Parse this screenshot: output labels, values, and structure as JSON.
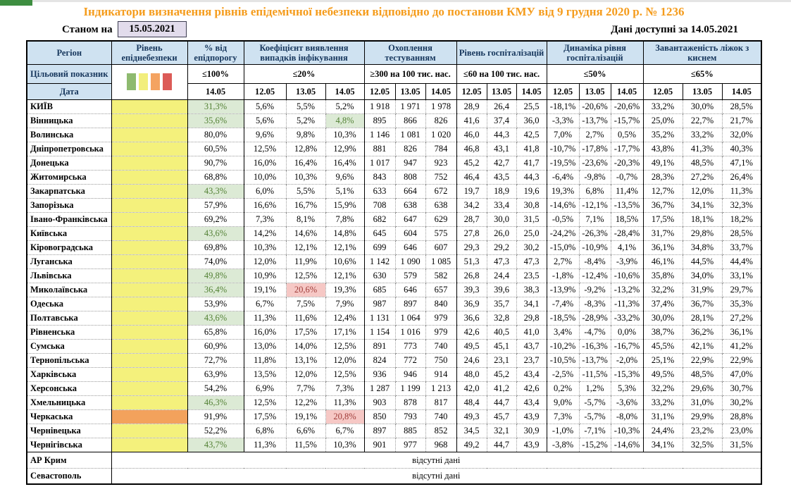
{
  "title": "Індикатори визначення рівнів епідемічної небезпеки відповідно до постанови КМУ від 9 грудня 2020 р. № 1236",
  "meta": {
    "as_of_label": "Станом на",
    "as_of_date": "15.05.2021",
    "available_label": "Дані доступні за",
    "available_date": "14.05.2021"
  },
  "header": {
    "region_label": "Регіон",
    "level_label": "Рівень епіднебезпеки",
    "target_row_label": "Цільовий показник",
    "date_row_label": "Дата",
    "legend_colors": [
      "#8eba6f",
      "#f2ee7c",
      "#f4a361",
      "#dc5b57"
    ],
    "groups": [
      {
        "label": "% від епідпорогу",
        "target": "≤100%",
        "dates": [
          "14.05"
        ]
      },
      {
        "label": "Коефіцієнт виявлення випадків інфікування",
        "target": "≤20%",
        "dates": [
          "12.05",
          "13.05",
          "14.05"
        ]
      },
      {
        "label": "Охоплення тестуванням",
        "target": "≥300 на 100 тис. нас.",
        "dates": [
          "12.05",
          "13.05",
          "14.05"
        ]
      },
      {
        "label": "Рівень госпіталізацій",
        "target": "≤60 на 100 тис. нас.",
        "dates": [
          "12.05",
          "13.05",
          "14.05"
        ]
      },
      {
        "label": "Динаміка рівня госпіталізацій",
        "target": "≤50%",
        "dates": [
          "12.05",
          "13.05",
          "14.05"
        ]
      },
      {
        "label": "Завантаженість ліжок з киснем",
        "target": "≤65%",
        "dates": [
          "12.05",
          "13.05",
          "14.05"
        ]
      }
    ]
  },
  "level_colors": {
    "yellow": "#f4f17c",
    "orange": "#f3a25c"
  },
  "rows": [
    {
      "region": "КИЇВ",
      "level": "yellow",
      "green": [
        0
      ],
      "red": [],
      "cells": [
        "31,3%",
        "5,6%",
        "5,5%",
        "5,2%",
        "1 918",
        "1 971",
        "1 978",
        "28,9",
        "26,4",
        "25,5",
        "-18,1%",
        "-20,6%",
        "-20,6%",
        "33,2%",
        "30,0%",
        "28,5%"
      ]
    },
    {
      "region": "Вінницька",
      "level": "yellow",
      "green": [
        0,
        3
      ],
      "red": [],
      "cells": [
        "35,6%",
        "5,6%",
        "5,2%",
        "4,8%",
        "895",
        "866",
        "826",
        "41,6",
        "37,4",
        "36,0",
        "-3,3%",
        "-13,7%",
        "-15,7%",
        "25,0%",
        "22,7%",
        "21,7%"
      ]
    },
    {
      "region": "Волинська",
      "level": "yellow",
      "green": [],
      "red": [],
      "cells": [
        "80,0%",
        "9,6%",
        "9,8%",
        "10,3%",
        "1 146",
        "1 081",
        "1 020",
        "46,0",
        "44,3",
        "42,5",
        "7,0%",
        "2,7%",
        "0,5%",
        "35,2%",
        "33,2%",
        "32,0%"
      ]
    },
    {
      "region": "Дніпропетровська",
      "level": "yellow",
      "green": [],
      "red": [],
      "cells": [
        "60,5%",
        "12,5%",
        "12,8%",
        "12,9%",
        "881",
        "826",
        "784",
        "46,8",
        "43,1",
        "41,8",
        "-10,7%",
        "-17,8%",
        "-17,7%",
        "43,8%",
        "41,3%",
        "40,3%"
      ]
    },
    {
      "region": "Донецька",
      "level": "yellow",
      "green": [],
      "red": [],
      "cells": [
        "90,7%",
        "16,0%",
        "16,4%",
        "16,4%",
        "1 017",
        "947",
        "923",
        "45,2",
        "42,7",
        "41,7",
        "-19,5%",
        "-23,6%",
        "-20,3%",
        "49,1%",
        "48,5%",
        "47,1%"
      ]
    },
    {
      "region": "Житомирська",
      "level": "yellow",
      "green": [],
      "red": [],
      "cells": [
        "68,8%",
        "10,0%",
        "10,3%",
        "9,6%",
        "843",
        "808",
        "752",
        "46,4",
        "43,5",
        "44,3",
        "-6,4%",
        "-9,8%",
        "-0,7%",
        "28,3%",
        "27,2%",
        "26,4%"
      ]
    },
    {
      "region": "Закарпатська",
      "level": "yellow",
      "green": [
        0
      ],
      "red": [],
      "cells": [
        "43,3%",
        "6,0%",
        "5,5%",
        "5,1%",
        "633",
        "664",
        "672",
        "19,7",
        "18,9",
        "19,6",
        "19,3%",
        "6,8%",
        "11,4%",
        "12,7%",
        "12,0%",
        "11,3%"
      ]
    },
    {
      "region": "Запорізька",
      "level": "yellow",
      "green": [],
      "red": [],
      "cells": [
        "57,9%",
        "16,6%",
        "16,7%",
        "15,9%",
        "708",
        "638",
        "638",
        "34,2",
        "33,4",
        "30,8",
        "-14,6%",
        "-12,1%",
        "-13,5%",
        "36,7%",
        "34,1%",
        "32,3%"
      ]
    },
    {
      "region": "Івано-Франківська",
      "level": "yellow",
      "green": [],
      "red": [],
      "cells": [
        "69,2%",
        "7,3%",
        "8,1%",
        "7,8%",
        "682",
        "647",
        "629",
        "28,7",
        "30,0",
        "31,5",
        "-0,5%",
        "7,1%",
        "18,5%",
        "17,5%",
        "18,1%",
        "18,2%"
      ]
    },
    {
      "region": "Київська",
      "level": "yellow",
      "green": [
        0
      ],
      "red": [],
      "cells": [
        "43,6%",
        "14,2%",
        "14,6%",
        "14,8%",
        "645",
        "604",
        "575",
        "27,8",
        "26,0",
        "25,0",
        "-24,2%",
        "-26,3%",
        "-28,4%",
        "31,7%",
        "29,8%",
        "28,5%"
      ]
    },
    {
      "region": "Кіровоградська",
      "level": "yellow",
      "green": [],
      "red": [],
      "cells": [
        "69,8%",
        "10,3%",
        "12,1%",
        "12,1%",
        "699",
        "646",
        "607",
        "29,3",
        "29,2",
        "30,2",
        "-15,0%",
        "-10,9%",
        "4,1%",
        "36,1%",
        "34,8%",
        "33,7%"
      ]
    },
    {
      "region": "Луганська",
      "level": "yellow",
      "green": [],
      "red": [],
      "cells": [
        "74,0%",
        "12,0%",
        "11,9%",
        "10,6%",
        "1 142",
        "1 090",
        "1 085",
        "51,3",
        "47,3",
        "47,3",
        "2,7%",
        "-8,4%",
        "-3,9%",
        "46,1%",
        "44,5%",
        "44,4%"
      ]
    },
    {
      "region": "Львівська",
      "level": "yellow",
      "green": [
        0
      ],
      "red": [],
      "cells": [
        "49,8%",
        "10,9%",
        "12,5%",
        "12,1%",
        "630",
        "579",
        "582",
        "26,8",
        "24,4",
        "23,5",
        "-1,8%",
        "-12,4%",
        "-10,6%",
        "35,8%",
        "34,0%",
        "33,1%"
      ]
    },
    {
      "region": "Миколаївська",
      "level": "yellow",
      "green": [
        0
      ],
      "red": [
        2
      ],
      "cells": [
        "36,4%",
        "19,1%",
        "20,6%",
        "19,3%",
        "685",
        "646",
        "657",
        "39,3",
        "39,6",
        "38,3",
        "-13,9%",
        "-9,2%",
        "-13,2%",
        "32,2%",
        "31,9%",
        "29,7%"
      ]
    },
    {
      "region": "Одеська",
      "level": "yellow",
      "green": [],
      "red": [],
      "cells": [
        "53,9%",
        "6,7%",
        "7,5%",
        "7,9%",
        "987",
        "897",
        "840",
        "36,9",
        "35,7",
        "34,1",
        "-7,4%",
        "-8,3%",
        "-11,3%",
        "37,4%",
        "36,7%",
        "35,3%"
      ]
    },
    {
      "region": "Полтавська",
      "level": "yellow",
      "green": [
        0
      ],
      "red": [],
      "cells": [
        "43,6%",
        "11,3%",
        "11,6%",
        "12,4%",
        "1 131",
        "1 064",
        "979",
        "36,6",
        "32,8",
        "29,8",
        "-18,5%",
        "-28,9%",
        "-33,2%",
        "30,0%",
        "28,1%",
        "27,2%"
      ]
    },
    {
      "region": "Рівненська",
      "level": "yellow",
      "green": [],
      "red": [],
      "cells": [
        "65,8%",
        "16,0%",
        "17,5%",
        "17,1%",
        "1 154",
        "1 016",
        "979",
        "42,6",
        "40,5",
        "41,0",
        "3,4%",
        "-4,7%",
        "0,0%",
        "38,7%",
        "36,2%",
        "36,1%"
      ]
    },
    {
      "region": "Сумська",
      "level": "yellow",
      "green": [],
      "red": [],
      "cells": [
        "60,9%",
        "13,0%",
        "14,0%",
        "12,5%",
        "891",
        "773",
        "740",
        "49,5",
        "45,1",
        "43,7",
        "-10,2%",
        "-16,3%",
        "-16,7%",
        "45,5%",
        "42,1%",
        "41,2%"
      ]
    },
    {
      "region": "Тернопільська",
      "level": "yellow",
      "green": [],
      "red": [],
      "cells": [
        "72,7%",
        "11,8%",
        "13,1%",
        "12,0%",
        "824",
        "772",
        "750",
        "24,6",
        "23,1",
        "23,7",
        "-10,5%",
        "-13,7%",
        "-2,0%",
        "25,1%",
        "22,9%",
        "22,9%"
      ]
    },
    {
      "region": "Харківська",
      "level": "yellow",
      "green": [],
      "red": [],
      "cells": [
        "63,9%",
        "13,5%",
        "12,0%",
        "12,5%",
        "936",
        "946",
        "914",
        "48,0",
        "45,2",
        "43,4",
        "-2,5%",
        "-11,5%",
        "-15,3%",
        "49,5%",
        "48,5%",
        "47,0%"
      ]
    },
    {
      "region": "Херсонська",
      "level": "yellow",
      "green": [],
      "red": [],
      "cells": [
        "54,2%",
        "6,9%",
        "7,7%",
        "7,3%",
        "1 287",
        "1 199",
        "1 213",
        "42,0",
        "41,2",
        "42,6",
        "0,2%",
        "1,2%",
        "5,3%",
        "32,2%",
        "29,6%",
        "30,7%"
      ]
    },
    {
      "region": "Хмельницька",
      "level": "yellow",
      "green": [
        0
      ],
      "red": [],
      "cells": [
        "46,3%",
        "12,5%",
        "12,2%",
        "11,3%",
        "903",
        "878",
        "817",
        "48,4",
        "44,7",
        "43,4",
        "9,0%",
        "-5,7%",
        "-3,6%",
        "33,2%",
        "31,0%",
        "30,2%"
      ]
    },
    {
      "region": "Черкаська",
      "level": "orange",
      "green": [],
      "red": [
        3
      ],
      "cells": [
        "91,9%",
        "17,5%",
        "19,1%",
        "20,8%",
        "850",
        "793",
        "740",
        "49,3",
        "45,7",
        "43,9",
        "7,3%",
        "-5,7%",
        "-8,0%",
        "31,1%",
        "29,9%",
        "28,8%"
      ]
    },
    {
      "region": "Чернівецька",
      "level": "yellow",
      "green": [],
      "red": [],
      "cells": [
        "52,2%",
        "6,8%",
        "6,6%",
        "6,7%",
        "897",
        "885",
        "852",
        "34,5",
        "32,1",
        "30,9",
        "-1,0%",
        "-7,1%",
        "-10,3%",
        "24,4%",
        "23,2%",
        "23,0%"
      ]
    },
    {
      "region": "Чернігівська",
      "level": "yellow",
      "green": [
        0
      ],
      "red": [],
      "cells": [
        "43,7%",
        "11,3%",
        "11,5%",
        "10,3%",
        "901",
        "977",
        "968",
        "49,2",
        "44,7",
        "43,9",
        "-3,8%",
        "-15,2%",
        "-14,6%",
        "34,1%",
        "32,5%",
        "31,5%"
      ]
    }
  ],
  "no_data": {
    "text": "відсутні дані",
    "regions": [
      "АР Крим",
      "Севастополь"
    ]
  }
}
